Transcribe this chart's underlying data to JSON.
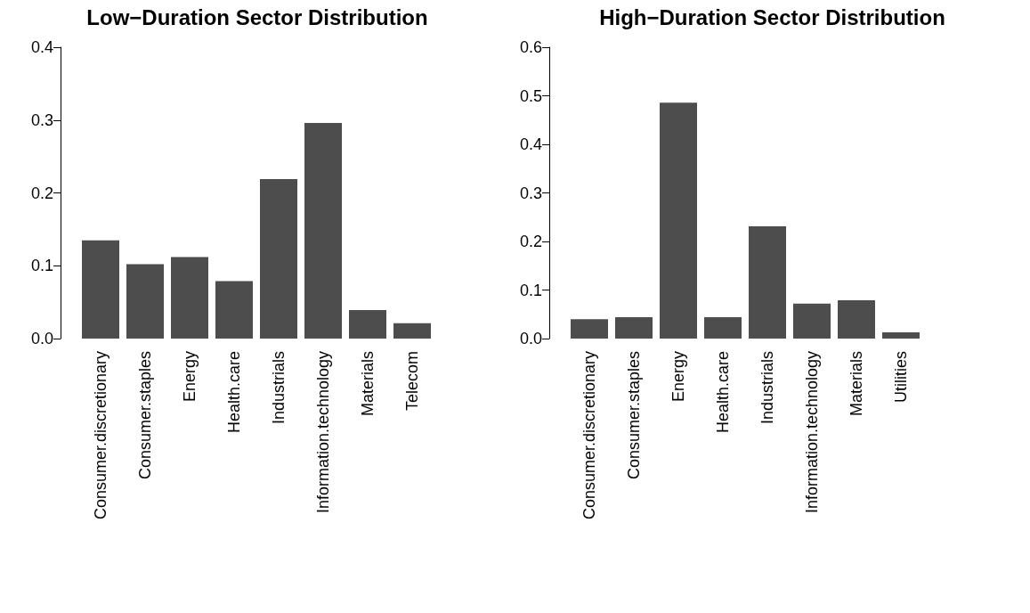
{
  "chart_data": [
    {
      "type": "bar",
      "title": "Low−Duration Sector Distribution",
      "categories": [
        "Consumer.discretionary",
        "Consumer.staples",
        "Energy",
        "Health.care",
        "Industrials",
        "Information.technology",
        "Materials",
        "Telecom"
      ],
      "values": [
        0.135,
        0.102,
        0.112,
        0.079,
        0.219,
        0.296,
        0.039,
        0.021
      ],
      "color": "#4d4d4d",
      "ylim": [
        0,
        0.4
      ],
      "yticks": [
        {
          "value": 0,
          "label": "0.0"
        },
        0.1,
        0.2,
        0.3,
        0.4
      ],
      "grid": false
    },
    {
      "type": "bar",
      "title": "High−Duration Sector Distribution",
      "categories": [
        "Consumer.discretionary",
        "Consumer.staples",
        "Energy",
        "Health.care",
        "Industrials",
        "Information.technology",
        "Materials",
        "Utilities"
      ],
      "values": [
        0.04,
        0.044,
        0.486,
        0.044,
        0.231,
        0.072,
        0.079,
        0.013
      ],
      "color": "#4d4d4d",
      "ylim": [
        0,
        0.6
      ],
      "yticks": [
        {
          "value": 0,
          "label": "0.0"
        },
        0.1,
        0.2,
        0.3,
        0.4,
        0.5,
        0.6
      ],
      "grid": false
    }
  ]
}
